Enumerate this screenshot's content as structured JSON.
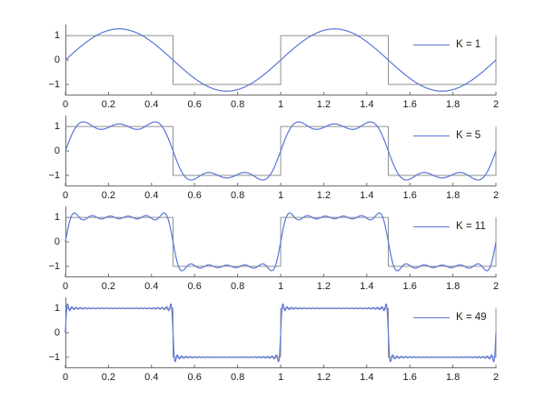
{
  "figure": {
    "background": "#ffffff",
    "description": "Four stacked subplots of a square wave and its Fourier series partial-sum approximations"
  },
  "chart_data": {
    "type": "line",
    "title": "",
    "xlabel": "",
    "ylabel": "",
    "xlim": [
      0,
      2
    ],
    "ylim": [
      -1.45,
      1.45
    ],
    "grid": false,
    "legend_position": "upper right",
    "x_tick_labels": [
      "0",
      "0.2",
      "0.4",
      "0.6",
      "0.8",
      "1",
      "1.2",
      "1.4",
      "1.6",
      "1.8",
      "2"
    ],
    "x_tick_values": [
      0,
      0.2,
      0.4,
      0.6,
      0.8,
      1,
      1.2,
      1.4,
      1.6,
      1.8,
      2
    ],
    "y_tick_labels": [
      "1",
      "0",
      "−1"
    ],
    "y_tick_values": [
      1,
      0,
      -1
    ],
    "panels": [
      {
        "legend": "K = 1",
        "K": 1
      },
      {
        "legend": "K = 5",
        "K": 5
      },
      {
        "legend": "K = 11",
        "K": 11
      },
      {
        "legend": "K = 49",
        "K": 49
      }
    ],
    "series_model": {
      "square_wave": {
        "name": "square wave",
        "period": 1,
        "high": 1,
        "low": -1,
        "segments": "+1 on (0,0.5), -1 on (0.5,1), repeating over [0,2]",
        "color": "#919191",
        "line_width": 1
      },
      "fourier_partial_sum": {
        "name": "Fourier partial sum",
        "formula": "f_K(x) = (4/pi) * sum over odd k<=K of sin(2*pi*k*x)/k",
        "color": "#5a75d8",
        "line_width": 1.2
      }
    },
    "axis_style": {
      "spine_color": "#6e6e6e",
      "tick_color": "#6e6e6e",
      "tick_length": 4,
      "tick_direction": "in",
      "label_color": "#1c1c1c"
    }
  }
}
